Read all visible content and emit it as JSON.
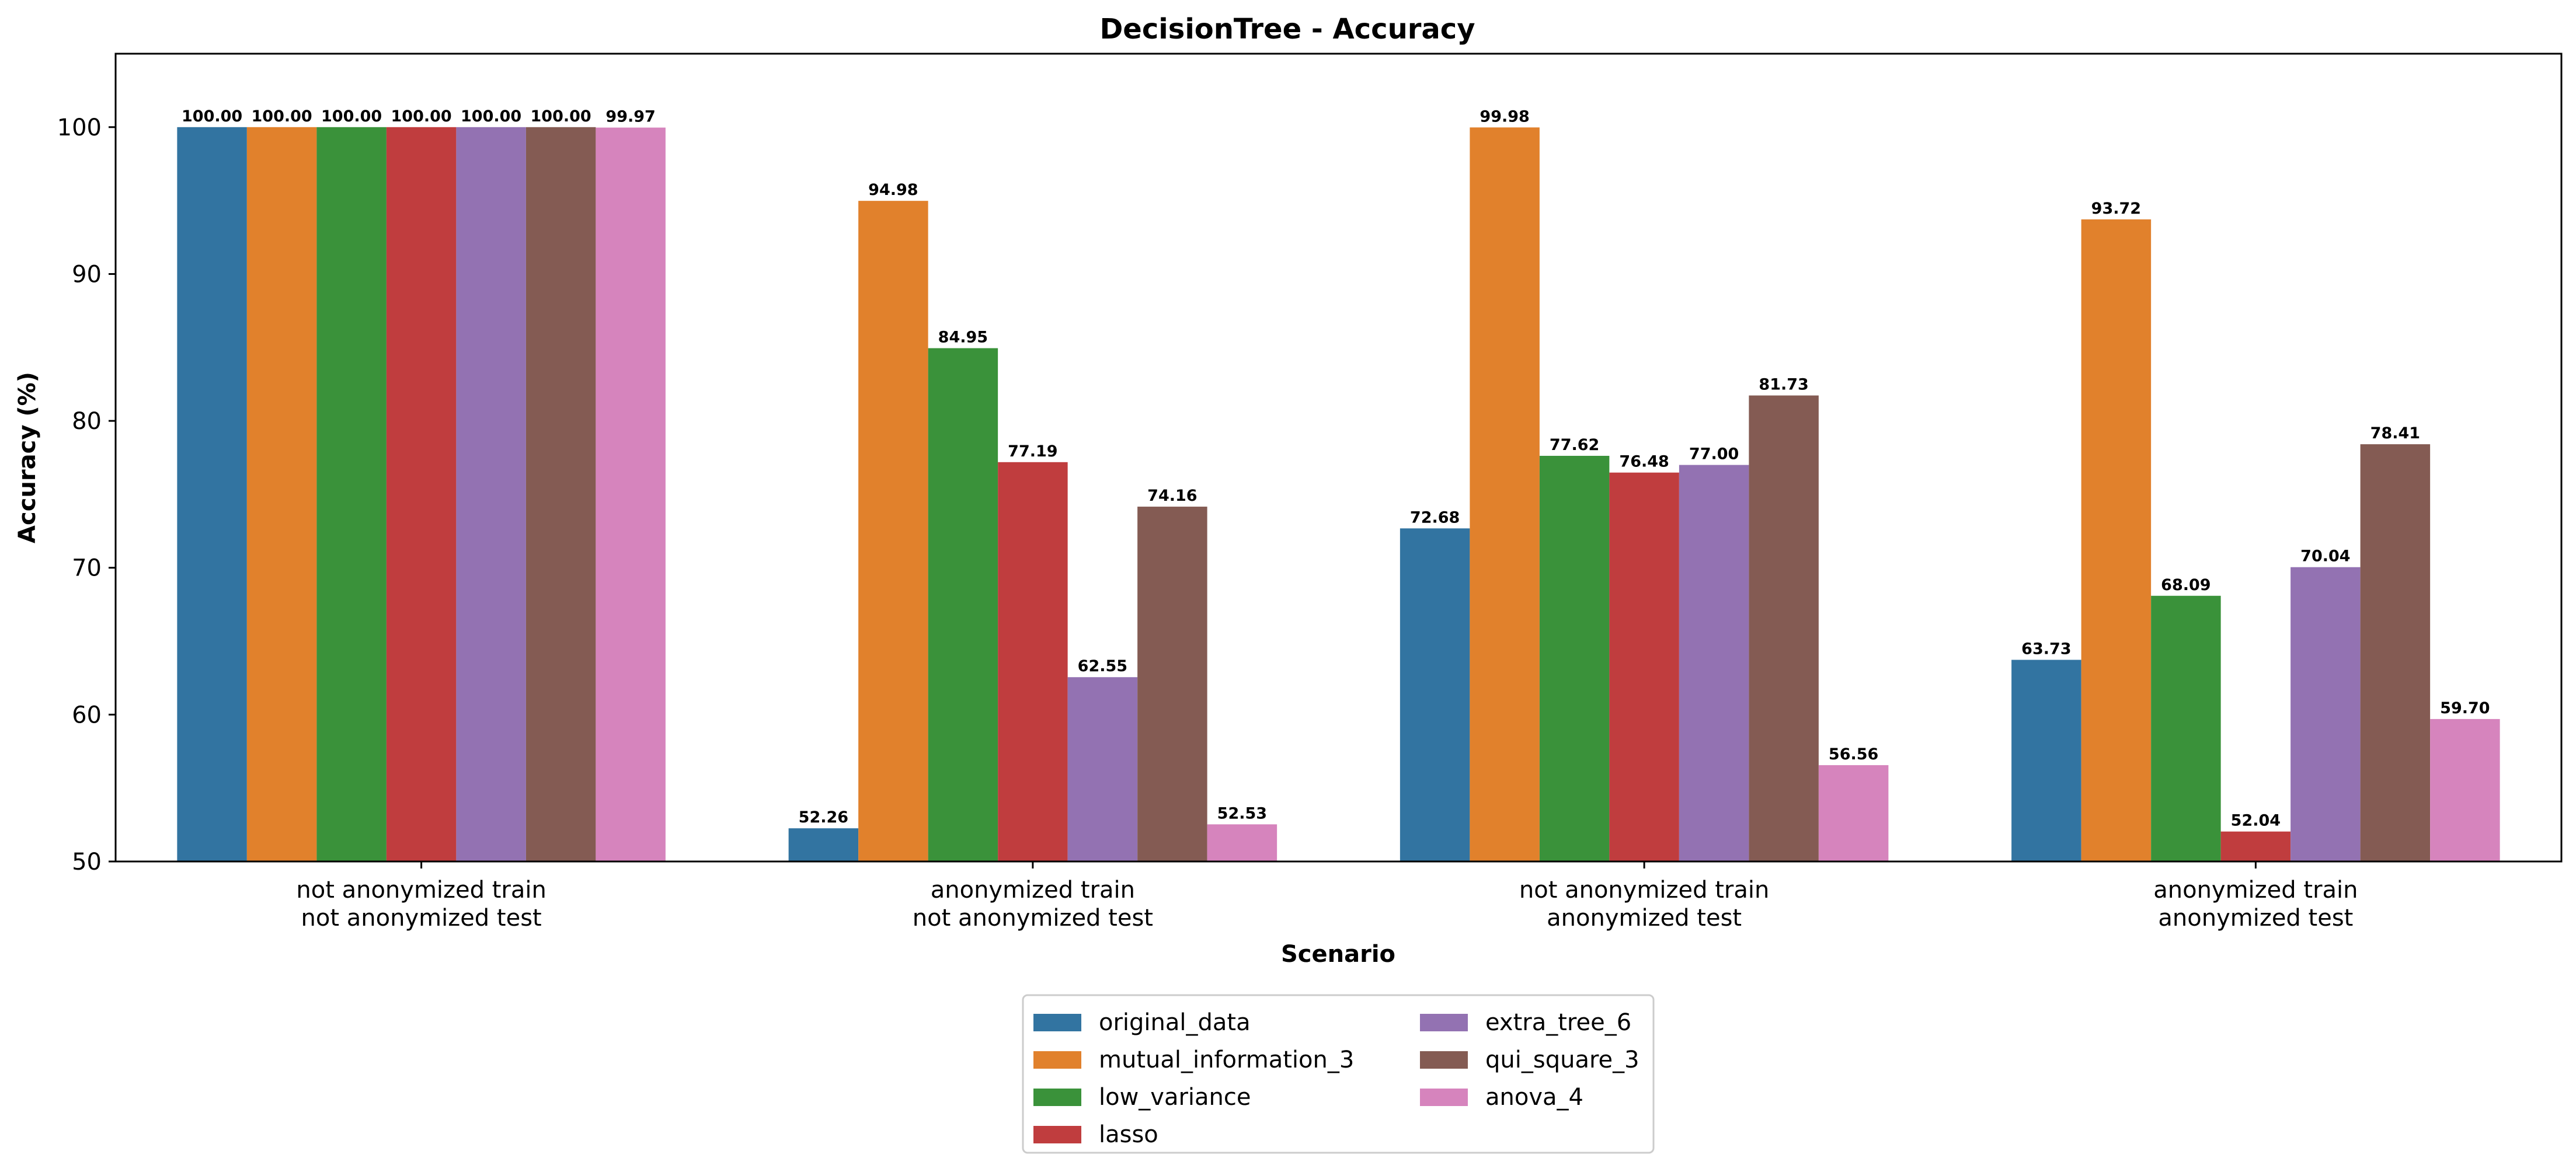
{
  "chart_data": {
    "type": "bar",
    "title": "DecisionTree - Accuracy",
    "xlabel": "Scenario",
    "ylabel": "Accuracy (%)",
    "ylim": [
      50,
      105
    ],
    "yticks": [
      "50",
      "60",
      "70",
      "80",
      "90",
      "100"
    ],
    "grid": false,
    "legend_position": "bottom-center",
    "categories": [
      [
        "not anonymized train",
        "not anonymized test"
      ],
      [
        "anonymized train",
        "not anonymized test"
      ],
      [
        "not anonymized train",
        "anonymized test"
      ],
      [
        "anonymized train",
        "anonymized test"
      ]
    ],
    "series": [
      {
        "name": "original_data",
        "color": "#3274a1",
        "values": [
          100.0,
          52.26,
          72.68,
          63.73
        ],
        "labels": [
          "100.00",
          "52.26",
          "72.68",
          "63.73"
        ]
      },
      {
        "name": "mutual_information_3",
        "color": "#e1812c",
        "values": [
          100.0,
          94.98,
          99.98,
          93.72
        ],
        "labels": [
          "100.00",
          "94.98",
          "99.98",
          "93.72"
        ]
      },
      {
        "name": "low_variance",
        "color": "#3a923a",
        "values": [
          100.0,
          84.95,
          77.62,
          68.09
        ],
        "labels": [
          "100.00",
          "84.95",
          "77.62",
          "68.09"
        ]
      },
      {
        "name": "lasso",
        "color": "#c03d3e",
        "values": [
          100.0,
          77.19,
          76.48,
          52.04
        ],
        "labels": [
          "100.00",
          "77.19",
          "76.48",
          "52.04"
        ]
      },
      {
        "name": "extra_tree_6",
        "color": "#9372b2",
        "values": [
          100.0,
          62.55,
          77.0,
          70.04
        ],
        "labels": [
          "100.00",
          "62.55",
          "77.00",
          "70.04"
        ]
      },
      {
        "name": "qui_square_3",
        "color": "#845b53",
        "values": [
          100.0,
          74.16,
          81.73,
          78.41
        ],
        "labels": [
          "100.00",
          "74.16",
          "81.73",
          "78.41"
        ]
      },
      {
        "name": "anova_4",
        "color": "#d684bd",
        "values": [
          99.97,
          52.53,
          56.56,
          59.7
        ],
        "labels": [
          "99.97",
          "52.53",
          "56.56",
          "59.70"
        ]
      }
    ]
  }
}
